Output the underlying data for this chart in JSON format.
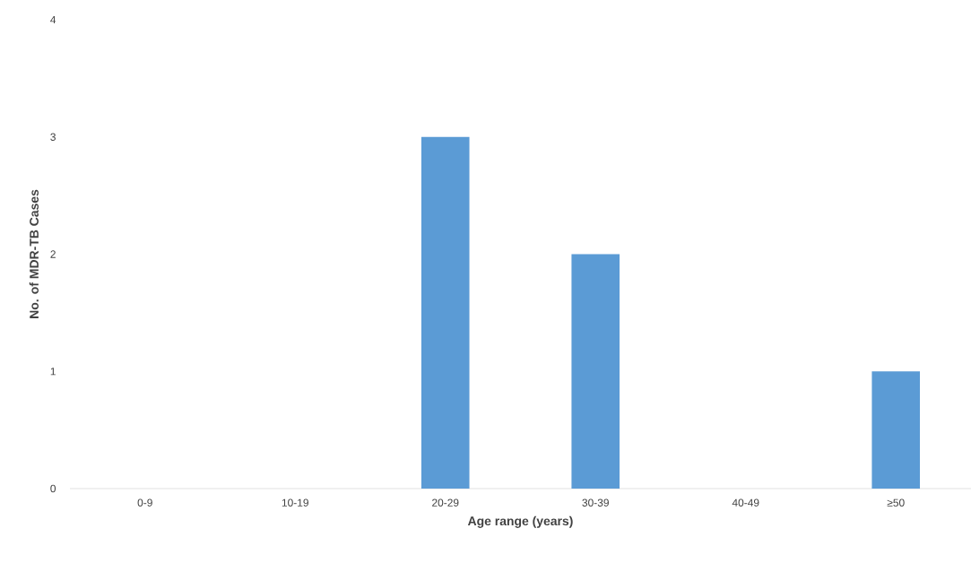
{
  "chart_data": {
    "type": "bar",
    "xlabel": "Age range (years)",
    "ylabel": "No. of MDR-TB Cases",
    "categories": [
      "0-9",
      "10-19",
      "20-29",
      "30-39",
      "40-49",
      "≥50"
    ],
    "values": [
      0,
      0,
      3,
      2,
      0,
      1
    ],
    "color": "#5b9bd5",
    "ylim": [
      0,
      4
    ],
    "yticks": [
      0,
      1,
      2,
      3,
      4
    ]
  }
}
